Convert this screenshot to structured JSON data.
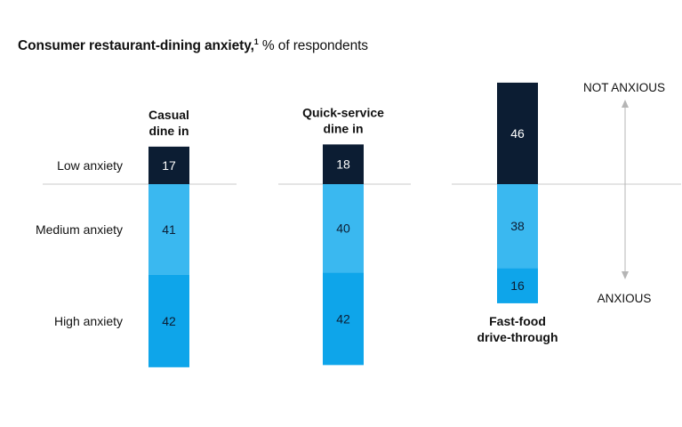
{
  "title": {
    "main": "Consumer restaurant-dining anxiety,",
    "footnote": "1",
    "unit": "% of respondents"
  },
  "chart_data": {
    "type": "bar",
    "stacked": true,
    "row_labels": [
      "Low anxiety",
      "Medium anxiety",
      "High anxiety"
    ],
    "columns": [
      {
        "label_lines": [
          "Casual",
          "dine in"
        ],
        "label_position": "top",
        "values": [
          17,
          41,
          42
        ]
      },
      {
        "label_lines": [
          "Quick-service",
          "dine in"
        ],
        "label_position": "top",
        "values": [
          18,
          40,
          42
        ]
      },
      {
        "label_lines": [
          "Fast-food",
          "drive-through"
        ],
        "label_position": "bottom",
        "values": [
          46,
          38,
          16
        ]
      }
    ],
    "axis_labels": {
      "top": "NOT ANXIOUS",
      "bottom": "ANXIOUS"
    },
    "colors": {
      "low": "#0c1d33",
      "medium": "#3ab8f0",
      "high": "#0ea5ea"
    },
    "ylim": [
      0,
      100
    ],
    "grid": false,
    "legend": "none"
  }
}
